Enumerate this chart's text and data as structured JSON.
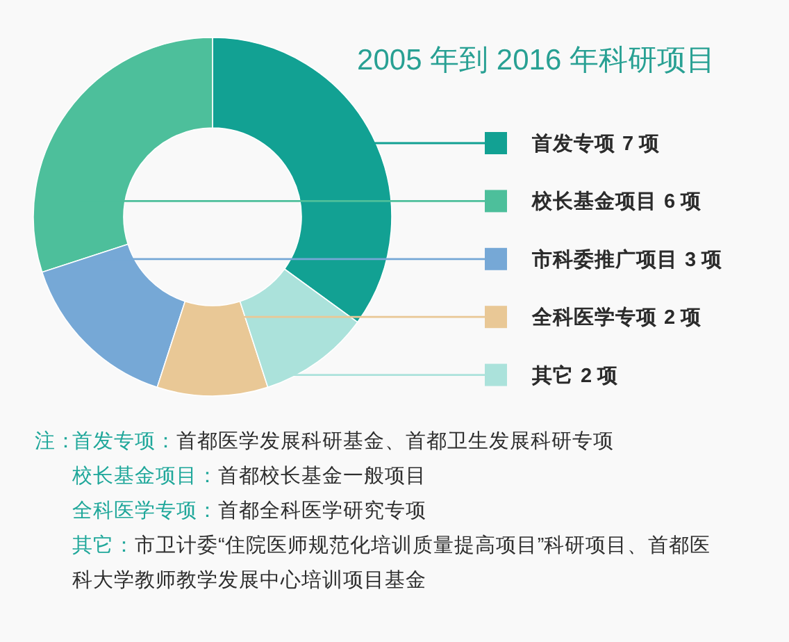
{
  "chart_data": {
    "type": "donut",
    "title": "2005 年到 2016 年科研项目",
    "categories": [
      "首发专项",
      "校长基金项目",
      "市科委推广项目",
      "全科医学专项",
      "其它"
    ],
    "values": [
      7,
      6,
      3,
      2,
      2
    ],
    "value_labels": [
      "7 项",
      "6 项",
      "3 项",
      "2 项",
      "2 项"
    ],
    "colors": [
      "#12a193",
      "#4dbf9b",
      "#76a8d6",
      "#e9c896",
      "#abe2db"
    ],
    "legend": "right",
    "annotations": [
      "注：",
      "首发专项：首都医学发展科研基金、首都卫生发展科研专项",
      "校长基金项目：首都校长基金一般项目",
      "全科医学专项：首都全科医学研究专项",
      "其它：市卫计委“住院医师规范化培训质量提高项目”科研项目、首都医科大学教师教学发展中心培训项目基金"
    ]
  }
}
